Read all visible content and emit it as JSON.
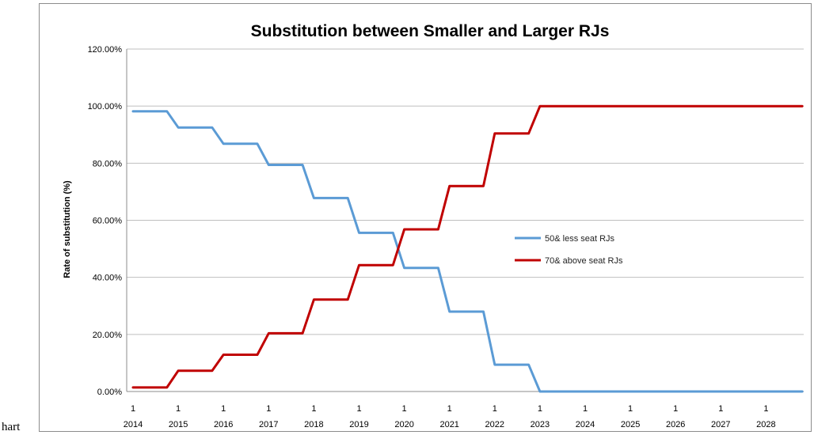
{
  "caption_fragment": "hart",
  "chart_data": {
    "type": "line",
    "title": "Substitution between Smaller and Larger RJs",
    "xlabel": "",
    "ylabel": "Rate of substitution (%)",
    "ylim": [
      0,
      120
    ],
    "yticks": [
      "0.00%",
      "20.00%",
      "40.00%",
      "60.00%",
      "80.00%",
      "100.00%",
      "120.00%"
    ],
    "categories": [
      {
        "top": "1",
        "bottom": "2014"
      },
      {
        "top": "1",
        "bottom": "2015"
      },
      {
        "top": "1",
        "bottom": "2016"
      },
      {
        "top": "1",
        "bottom": "2017"
      },
      {
        "top": "1",
        "bottom": "2018"
      },
      {
        "top": "1",
        "bottom": "2019"
      },
      {
        "top": "1",
        "bottom": "2020"
      },
      {
        "top": "1",
        "bottom": "2021"
      },
      {
        "top": "1",
        "bottom": "2022"
      },
      {
        "top": "1",
        "bottom": "2023"
      },
      {
        "top": "1",
        "bottom": "2024"
      },
      {
        "top": "1",
        "bottom": "2025"
      },
      {
        "top": "1",
        "bottom": "2026"
      },
      {
        "top": "1",
        "bottom": "2027"
      },
      {
        "top": "1",
        "bottom": "2028"
      }
    ],
    "x_range": [
      2014,
      2028.8
    ],
    "grid": "horizontal",
    "legend_position": "center-right",
    "series": [
      {
        "name": "50& less seat RJs",
        "color": "#5b9bd5",
        "points": [
          [
            2014.0,
            98.2
          ],
          [
            2014.75,
            98.2
          ],
          [
            2015.0,
            92.5
          ],
          [
            2015.75,
            92.5
          ],
          [
            2016.0,
            86.8
          ],
          [
            2016.75,
            86.8
          ],
          [
            2017.0,
            79.4
          ],
          [
            2017.75,
            79.4
          ],
          [
            2018.0,
            67.8
          ],
          [
            2018.75,
            67.8
          ],
          [
            2019.0,
            55.6
          ],
          [
            2019.75,
            55.6
          ],
          [
            2020.0,
            43.3
          ],
          [
            2020.75,
            43.3
          ],
          [
            2021.0,
            28.0
          ],
          [
            2021.75,
            28.0
          ],
          [
            2022.0,
            9.4
          ],
          [
            2022.75,
            9.4
          ],
          [
            2023.0,
            0.0
          ],
          [
            2028.8,
            0.0
          ]
        ]
      },
      {
        "name": "70& above seat RJs",
        "color": "#c00000",
        "points": [
          [
            2014.0,
            1.4
          ],
          [
            2014.75,
            1.4
          ],
          [
            2015.0,
            7.3
          ],
          [
            2015.75,
            7.3
          ],
          [
            2016.0,
            12.9
          ],
          [
            2016.75,
            12.9
          ],
          [
            2017.0,
            20.4
          ],
          [
            2017.75,
            20.4
          ],
          [
            2018.0,
            32.2
          ],
          [
            2018.75,
            32.2
          ],
          [
            2019.0,
            44.3
          ],
          [
            2019.75,
            44.3
          ],
          [
            2020.0,
            56.8
          ],
          [
            2020.75,
            56.8
          ],
          [
            2021.0,
            72.0
          ],
          [
            2021.75,
            72.0
          ],
          [
            2022.0,
            90.4
          ],
          [
            2022.75,
            90.4
          ],
          [
            2023.0,
            100.0
          ],
          [
            2028.8,
            100.0
          ]
        ]
      }
    ]
  }
}
